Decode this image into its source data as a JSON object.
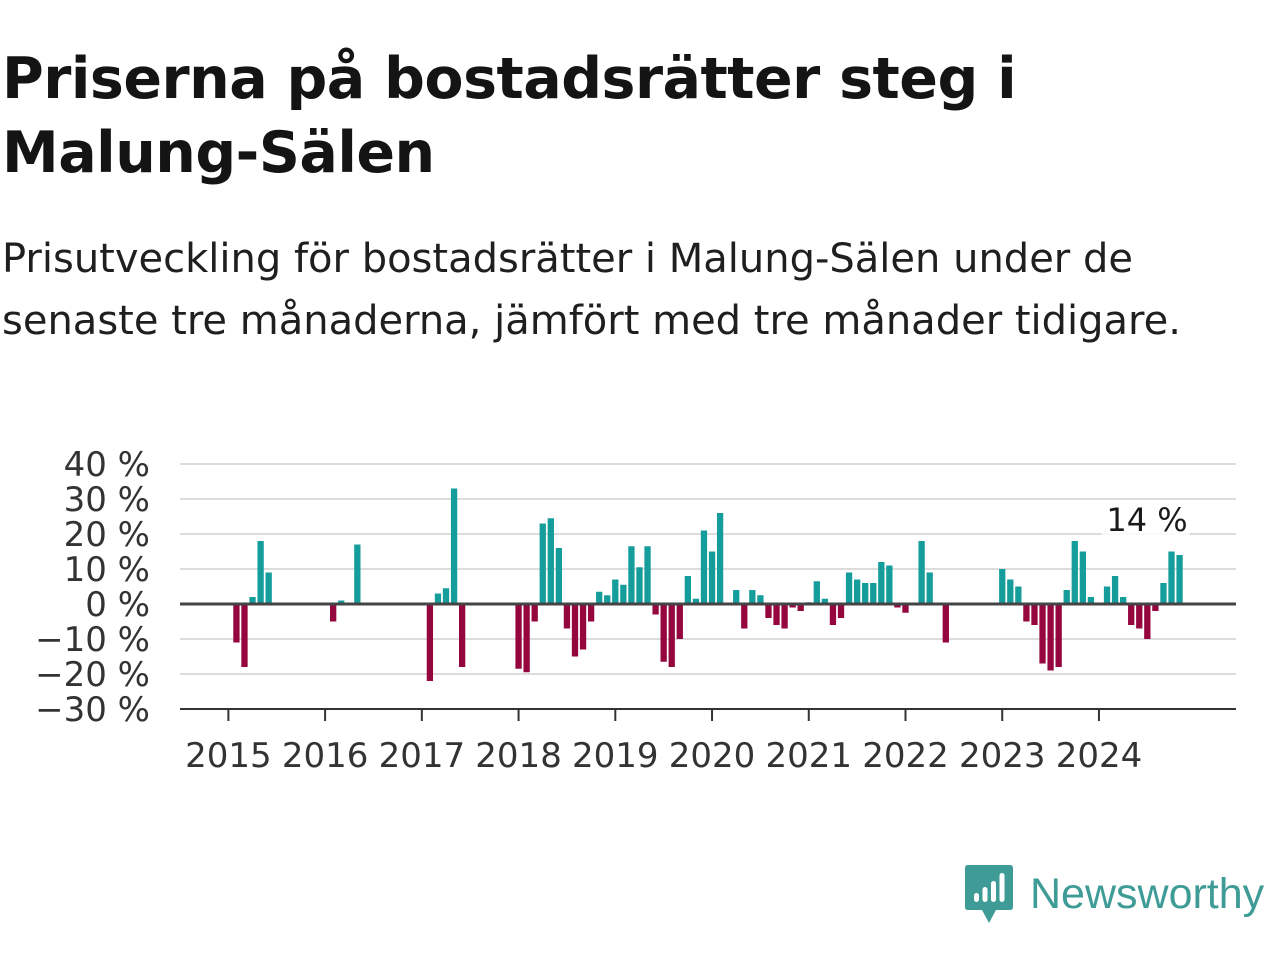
{
  "title": "Priserna på bostadsrätter steg i Malung-Sälen",
  "subtitle": "Prisutveckling för bostadsrätter i Malung-Sälen under de senaste tre månaderna, jämfört med tre månader tidigare.",
  "brand": {
    "name": "Newsworthy",
    "color": "#3e9b96"
  },
  "colors": {
    "positive": "#159d9c",
    "negative": "#94063d",
    "grid": "#dcdcdc",
    "baseline": "#444444"
  },
  "chart_data": {
    "type": "bar",
    "title": "Priserna på bostadsrätter steg i Malung-Sälen",
    "xlabel": "",
    "ylabel": "",
    "ylim": [
      -30,
      40
    ],
    "xlim": [
      "2014-07",
      "2025-06"
    ],
    "grid": true,
    "legend": "none",
    "y_ticks": [
      40,
      30,
      20,
      10,
      0,
      -10,
      -20,
      -30
    ],
    "y_tick_labels": [
      "40 %",
      "30 %",
      "20 %",
      "10 %",
      "0 %",
      "−10 %",
      "−20 %",
      "−30 %"
    ],
    "x_ticks": [
      "2015-01",
      "2016-01",
      "2017-01",
      "2018-01",
      "2019-01",
      "2020-01",
      "2021-01",
      "2022-01",
      "2023-01",
      "2024-01"
    ],
    "x_tick_labels": [
      "2015",
      "2016",
      "2017",
      "2018",
      "2019",
      "2020",
      "2021",
      "2022",
      "2023",
      "2024"
    ],
    "annotation": {
      "x": "2024-12",
      "y": 14,
      "label": "14 %"
    },
    "points": [
      {
        "x": "2015-02",
        "y": -11
      },
      {
        "x": "2015-03",
        "y": -18
      },
      {
        "x": "2015-04",
        "y": 2
      },
      {
        "x": "2015-05",
        "y": 18
      },
      {
        "x": "2015-06",
        "y": 9
      },
      {
        "x": "2016-02",
        "y": -5
      },
      {
        "x": "2016-03",
        "y": 1
      },
      {
        "x": "2016-05",
        "y": 17
      },
      {
        "x": "2017-02",
        "y": -22
      },
      {
        "x": "2017-03",
        "y": 3
      },
      {
        "x": "2017-04",
        "y": 4.5
      },
      {
        "x": "2017-05",
        "y": 33
      },
      {
        "x": "2017-06",
        "y": -18
      },
      {
        "x": "2018-01",
        "y": -18.5
      },
      {
        "x": "2018-02",
        "y": -19.5
      },
      {
        "x": "2018-03",
        "y": -5
      },
      {
        "x": "2018-04",
        "y": 23
      },
      {
        "x": "2018-05",
        "y": 24.5
      },
      {
        "x": "2018-06",
        "y": 16
      },
      {
        "x": "2018-07",
        "y": -7
      },
      {
        "x": "2018-08",
        "y": -15
      },
      {
        "x": "2018-09",
        "y": -13
      },
      {
        "x": "2018-10",
        "y": -5
      },
      {
        "x": "2018-11",
        "y": 3.5
      },
      {
        "x": "2018-12",
        "y": 2.5
      },
      {
        "x": "2019-01",
        "y": 7
      },
      {
        "x": "2019-02",
        "y": 5.5
      },
      {
        "x": "2019-03",
        "y": 16.5
      },
      {
        "x": "2019-04",
        "y": 10.5
      },
      {
        "x": "2019-05",
        "y": 16.5
      },
      {
        "x": "2019-06",
        "y": -3
      },
      {
        "x": "2019-07",
        "y": -16.5
      },
      {
        "x": "2019-08",
        "y": -18
      },
      {
        "x": "2019-09",
        "y": -10
      },
      {
        "x": "2019-10",
        "y": 8
      },
      {
        "x": "2019-11",
        "y": 1.5
      },
      {
        "x": "2019-12",
        "y": 21
      },
      {
        "x": "2020-01",
        "y": 15
      },
      {
        "x": "2020-02",
        "y": 26
      },
      {
        "x": "2020-04",
        "y": 4
      },
      {
        "x": "2020-05",
        "y": -7
      },
      {
        "x": "2020-06",
        "y": 4
      },
      {
        "x": "2020-07",
        "y": 2.5
      },
      {
        "x": "2020-08",
        "y": -4
      },
      {
        "x": "2020-09",
        "y": -6
      },
      {
        "x": "2020-10",
        "y": -7
      },
      {
        "x": "2020-11",
        "y": -1
      },
      {
        "x": "2020-12",
        "y": -2
      },
      {
        "x": "2021-01",
        "y": 0.5
      },
      {
        "x": "2021-02",
        "y": 6.5
      },
      {
        "x": "2021-03",
        "y": 1.5
      },
      {
        "x": "2021-04",
        "y": -6
      },
      {
        "x": "2021-05",
        "y": -4
      },
      {
        "x": "2021-06",
        "y": 9
      },
      {
        "x": "2021-07",
        "y": 7
      },
      {
        "x": "2021-08",
        "y": 6
      },
      {
        "x": "2021-09",
        "y": 6
      },
      {
        "x": "2021-10",
        "y": 12
      },
      {
        "x": "2021-11",
        "y": 11
      },
      {
        "x": "2021-12",
        "y": -1
      },
      {
        "x": "2022-01",
        "y": -2.5
      },
      {
        "x": "2022-03",
        "y": 18
      },
      {
        "x": "2022-04",
        "y": 9
      },
      {
        "x": "2022-06",
        "y": -11
      },
      {
        "x": "2023-01",
        "y": 10
      },
      {
        "x": "2023-02",
        "y": 7
      },
      {
        "x": "2023-03",
        "y": 5
      },
      {
        "x": "2023-04",
        "y": -5
      },
      {
        "x": "2023-05",
        "y": -6
      },
      {
        "x": "2023-06",
        "y": -17
      },
      {
        "x": "2023-07",
        "y": -19
      },
      {
        "x": "2023-08",
        "y": -18
      },
      {
        "x": "2023-09",
        "y": 4
      },
      {
        "x": "2023-10",
        "y": 18
      },
      {
        "x": "2023-11",
        "y": 15
      },
      {
        "x": "2023-12",
        "y": 2
      },
      {
        "x": "2024-02",
        "y": 5
      },
      {
        "x": "2024-03",
        "y": 8
      },
      {
        "x": "2024-04",
        "y": 2
      },
      {
        "x": "2024-05",
        "y": -6
      },
      {
        "x": "2024-06",
        "y": -7
      },
      {
        "x": "2024-07",
        "y": -10
      },
      {
        "x": "2024-08",
        "y": -2
      },
      {
        "x": "2024-09",
        "y": 6
      },
      {
        "x": "2024-10",
        "y": 15
      },
      {
        "x": "2024-11",
        "y": 14
      }
    ]
  }
}
